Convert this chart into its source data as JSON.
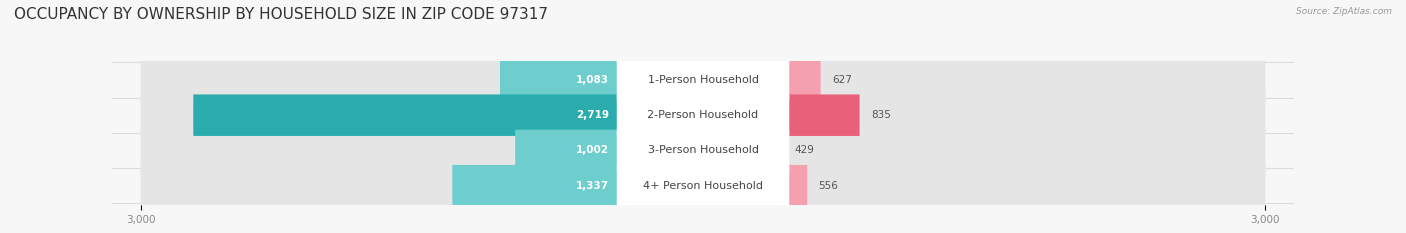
{
  "title": "OCCUPANCY BY OWNERSHIP BY HOUSEHOLD SIZE IN ZIP CODE 97317",
  "source": "Source: ZipAtlas.com",
  "categories": [
    "1-Person Household",
    "2-Person Household",
    "3-Person Household",
    "4+ Person Household"
  ],
  "owner_values": [
    1083,
    2719,
    1002,
    1337
  ],
  "renter_values": [
    627,
    835,
    429,
    556
  ],
  "owner_colors": [
    "#6ecece",
    "#2aacac",
    "#6ecece",
    "#6ecece"
  ],
  "renter_colors": [
    "#f4a0b0",
    "#e8607a",
    "#f4a0b0",
    "#f4a0b0"
  ],
  "axis_max": 3000,
  "background_color": "#f7f7f7",
  "bar_background": "#e5e5e5",
  "label_bg": "#ffffff",
  "owner_legend_color": "#6ecece",
  "renter_legend_color": "#f4a0b0",
  "title_fontsize": 11,
  "label_fontsize": 8,
  "value_fontsize": 7.5,
  "axis_fontsize": 7.5,
  "bar_height": 0.62,
  "row_sep_color": "#dddddd"
}
